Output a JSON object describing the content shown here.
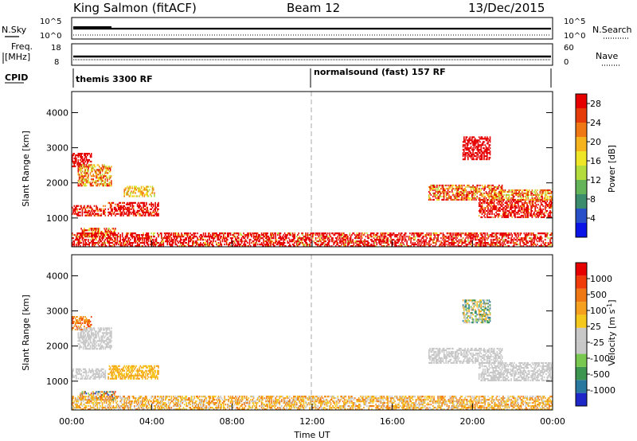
{
  "header": {
    "station": "King Salmon (fitACF)",
    "beam": "Beam 12",
    "date": "13/Dec/2015"
  },
  "summary": {
    "nsky_label": "N.Sky",
    "nsky_ticks": [
      "10^5",
      "10^0"
    ],
    "nsearch_label": "N.Search",
    "nsearch_ticks": [
      "10^5",
      "10^0"
    ],
    "freq_label_1": "Freq.",
    "freq_label_2": "[MHz]",
    "freq_ticks": [
      "18",
      "8"
    ],
    "nave_label": "Nave",
    "nave_ticks": [
      "60",
      "0"
    ],
    "cpid_label": "CPID",
    "cpid_segments": [
      {
        "label": "themis 3300 RF",
        "start_hour": 0
      },
      {
        "label": "normalsound (fast) 157 RF",
        "start_hour": 12
      }
    ]
  },
  "chart_data": [
    {
      "type": "heatmap",
      "name": "power",
      "xlabel": "",
      "ylabel": "Slant Range [km]",
      "xlim": [
        0,
        24
      ],
      "ylim": [
        180,
        4600
      ],
      "y_ticks": [
        "1000",
        "2000",
        "3000",
        "4000"
      ],
      "x_ticks": [
        "00:00",
        "04:00",
        "08:00",
        "12:00",
        "16:00",
        "20:00",
        "00:00"
      ],
      "colorbar": {
        "label": "Power [dB]",
        "ticks": [
          "4",
          "8",
          "12",
          "16",
          "20",
          "24",
          "28"
        ],
        "range": [
          0,
          30
        ],
        "colors": [
          "#0a14e6",
          "#2850c8",
          "#3c8c6e",
          "#64b45a",
          "#b4dc3c",
          "#f0e628",
          "#f5b41e",
          "#f07814",
          "#e63c0a",
          "#e60000"
        ]
      },
      "regions": [
        {
          "t": [
            0.0,
            1.7
          ],
          "r": [
            1050,
            1350
          ],
          "v": [
            6,
            18
          ]
        },
        {
          "t": [
            0.0,
            1.0
          ],
          "r": [
            2450,
            2850
          ],
          "v": [
            8,
            24
          ]
        },
        {
          "t": [
            0.3,
            2.0
          ],
          "r": [
            1900,
            2500
          ],
          "v": [
            4,
            10
          ]
        },
        {
          "t": [
            0.4,
            2.2
          ],
          "r": [
            450,
            700
          ],
          "v": [
            4,
            14
          ]
        },
        {
          "t": [
            1.8,
            4.3
          ],
          "r": [
            1050,
            1450
          ],
          "v": [
            6,
            20
          ]
        },
        {
          "t": [
            2.6,
            4.1
          ],
          "r": [
            1600,
            1900
          ],
          "v": [
            4,
            8
          ]
        },
        {
          "t": [
            0.0,
            24.0
          ],
          "r": [
            180,
            560
          ],
          "v": [
            4,
            30
          ]
        },
        {
          "t": [
            17.8,
            21.5
          ],
          "r": [
            1500,
            1950
          ],
          "v": [
            4,
            12
          ]
        },
        {
          "t": [
            19.5,
            20.9
          ],
          "r": [
            2650,
            3300
          ],
          "v": [
            10,
            26
          ]
        },
        {
          "t": [
            20.3,
            24.0
          ],
          "r": [
            1000,
            1500
          ],
          "v": [
            6,
            22
          ]
        },
        {
          "t": [
            21.0,
            24.0
          ],
          "r": [
            1500,
            1800
          ],
          "v": [
            4,
            10
          ]
        }
      ]
    },
    {
      "type": "heatmap",
      "name": "velocity",
      "xlabel": "Time UT",
      "ylabel": "Slant Range [km]",
      "xlim": [
        0,
        24
      ],
      "ylim": [
        180,
        4600
      ],
      "y_ticks": [
        "1000",
        "2000",
        "3000",
        "4000"
      ],
      "x_ticks": [
        "00:00",
        "04:00",
        "08:00",
        "12:00",
        "16:00",
        "20:00",
        "00:00"
      ],
      "colorbar": {
        "label": "Velocity [m s^-1]",
        "ticks": [
          "1000",
          "500",
          "100",
          "25",
          "-25",
          "-100",
          "-500",
          "-1000"
        ],
        "colors": [
          "#1e28c8",
          "#2878a0",
          "#3c9650",
          "#78c850",
          "#c8c8c8",
          "#c8c8c8",
          "#f5c81e",
          "#f5a01e",
          "#f07814",
          "#f03c0a",
          "#e60000"
        ]
      },
      "regions": [
        {
          "t": [
            0.0,
            1.7
          ],
          "r": [
            1050,
            1350
          ],
          "v": [
            4,
            6
          ]
        },
        {
          "t": [
            0.0,
            1.0
          ],
          "r": [
            2450,
            2850
          ],
          "v": [
            7,
            10
          ]
        },
        {
          "t": [
            0.3,
            2.0
          ],
          "r": [
            1900,
            2500
          ],
          "v": [
            4,
            6
          ]
        },
        {
          "t": [
            0.4,
            2.2
          ],
          "r": [
            450,
            700
          ],
          "v": [
            0,
            10
          ]
        },
        {
          "t": [
            1.8,
            4.3
          ],
          "r": [
            1050,
            1450
          ],
          "v": [
            6,
            8
          ]
        },
        {
          "t": [
            0.0,
            24.0
          ],
          "r": [
            180,
            560
          ],
          "v": [
            5,
            9
          ]
        },
        {
          "t": [
            17.8,
            21.5
          ],
          "r": [
            1500,
            1950
          ],
          "v": [
            4,
            5
          ]
        },
        {
          "t": [
            19.5,
            20.9
          ],
          "r": [
            2650,
            3300
          ],
          "v": [
            1,
            8
          ]
        },
        {
          "t": [
            20.3,
            24.0
          ],
          "r": [
            1000,
            1500
          ],
          "v": [
            4,
            6
          ]
        }
      ]
    }
  ]
}
